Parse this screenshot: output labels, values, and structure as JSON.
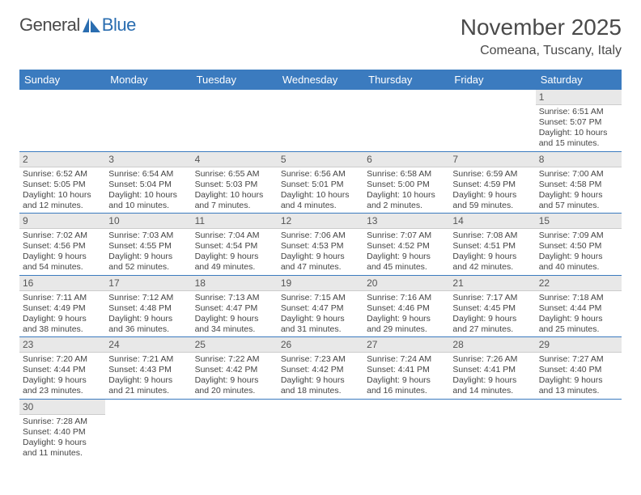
{
  "logo": {
    "text1": "General",
    "text2": "Blue"
  },
  "title": "November 2025",
  "subtitle": "Comeana, Tuscany, Italy",
  "colors": {
    "header_bg": "#3b7bbf",
    "header_text": "#ffffff",
    "daynum_bg": "#e8e8e8",
    "text": "#444444",
    "logo_gray": "#4a4a4a",
    "logo_blue": "#2a6db0"
  },
  "weekdays": [
    "Sunday",
    "Monday",
    "Tuesday",
    "Wednesday",
    "Thursday",
    "Friday",
    "Saturday"
  ],
  "startOffset": 6,
  "days": [
    {
      "n": 1,
      "sunrise": "6:51 AM",
      "sunset": "5:07 PM",
      "daylight": "10 hours and 15 minutes."
    },
    {
      "n": 2,
      "sunrise": "6:52 AM",
      "sunset": "5:05 PM",
      "daylight": "10 hours and 12 minutes."
    },
    {
      "n": 3,
      "sunrise": "6:54 AM",
      "sunset": "5:04 PM",
      "daylight": "10 hours and 10 minutes."
    },
    {
      "n": 4,
      "sunrise": "6:55 AM",
      "sunset": "5:03 PM",
      "daylight": "10 hours and 7 minutes."
    },
    {
      "n": 5,
      "sunrise": "6:56 AM",
      "sunset": "5:01 PM",
      "daylight": "10 hours and 4 minutes."
    },
    {
      "n": 6,
      "sunrise": "6:58 AM",
      "sunset": "5:00 PM",
      "daylight": "10 hours and 2 minutes."
    },
    {
      "n": 7,
      "sunrise": "6:59 AM",
      "sunset": "4:59 PM",
      "daylight": "9 hours and 59 minutes."
    },
    {
      "n": 8,
      "sunrise": "7:00 AM",
      "sunset": "4:58 PM",
      "daylight": "9 hours and 57 minutes."
    },
    {
      "n": 9,
      "sunrise": "7:02 AM",
      "sunset": "4:56 PM",
      "daylight": "9 hours and 54 minutes."
    },
    {
      "n": 10,
      "sunrise": "7:03 AM",
      "sunset": "4:55 PM",
      "daylight": "9 hours and 52 minutes."
    },
    {
      "n": 11,
      "sunrise": "7:04 AM",
      "sunset": "4:54 PM",
      "daylight": "9 hours and 49 minutes."
    },
    {
      "n": 12,
      "sunrise": "7:06 AM",
      "sunset": "4:53 PM",
      "daylight": "9 hours and 47 minutes."
    },
    {
      "n": 13,
      "sunrise": "7:07 AM",
      "sunset": "4:52 PM",
      "daylight": "9 hours and 45 minutes."
    },
    {
      "n": 14,
      "sunrise": "7:08 AM",
      "sunset": "4:51 PM",
      "daylight": "9 hours and 42 minutes."
    },
    {
      "n": 15,
      "sunrise": "7:09 AM",
      "sunset": "4:50 PM",
      "daylight": "9 hours and 40 minutes."
    },
    {
      "n": 16,
      "sunrise": "7:11 AM",
      "sunset": "4:49 PM",
      "daylight": "9 hours and 38 minutes."
    },
    {
      "n": 17,
      "sunrise": "7:12 AM",
      "sunset": "4:48 PM",
      "daylight": "9 hours and 36 minutes."
    },
    {
      "n": 18,
      "sunrise": "7:13 AM",
      "sunset": "4:47 PM",
      "daylight": "9 hours and 34 minutes."
    },
    {
      "n": 19,
      "sunrise": "7:15 AM",
      "sunset": "4:47 PM",
      "daylight": "9 hours and 31 minutes."
    },
    {
      "n": 20,
      "sunrise": "7:16 AM",
      "sunset": "4:46 PM",
      "daylight": "9 hours and 29 minutes."
    },
    {
      "n": 21,
      "sunrise": "7:17 AM",
      "sunset": "4:45 PM",
      "daylight": "9 hours and 27 minutes."
    },
    {
      "n": 22,
      "sunrise": "7:18 AM",
      "sunset": "4:44 PM",
      "daylight": "9 hours and 25 minutes."
    },
    {
      "n": 23,
      "sunrise": "7:20 AM",
      "sunset": "4:44 PM",
      "daylight": "9 hours and 23 minutes."
    },
    {
      "n": 24,
      "sunrise": "7:21 AM",
      "sunset": "4:43 PM",
      "daylight": "9 hours and 21 minutes."
    },
    {
      "n": 25,
      "sunrise": "7:22 AM",
      "sunset": "4:42 PM",
      "daylight": "9 hours and 20 minutes."
    },
    {
      "n": 26,
      "sunrise": "7:23 AM",
      "sunset": "4:42 PM",
      "daylight": "9 hours and 18 minutes."
    },
    {
      "n": 27,
      "sunrise": "7:24 AM",
      "sunset": "4:41 PM",
      "daylight": "9 hours and 16 minutes."
    },
    {
      "n": 28,
      "sunrise": "7:26 AM",
      "sunset": "4:41 PM",
      "daylight": "9 hours and 14 minutes."
    },
    {
      "n": 29,
      "sunrise": "7:27 AM",
      "sunset": "4:40 PM",
      "daylight": "9 hours and 13 minutes."
    },
    {
      "n": 30,
      "sunrise": "7:28 AM",
      "sunset": "4:40 PM",
      "daylight": "9 hours and 11 minutes."
    }
  ],
  "labels": {
    "sunrise": "Sunrise:",
    "sunset": "Sunset:",
    "daylight": "Daylight:"
  }
}
